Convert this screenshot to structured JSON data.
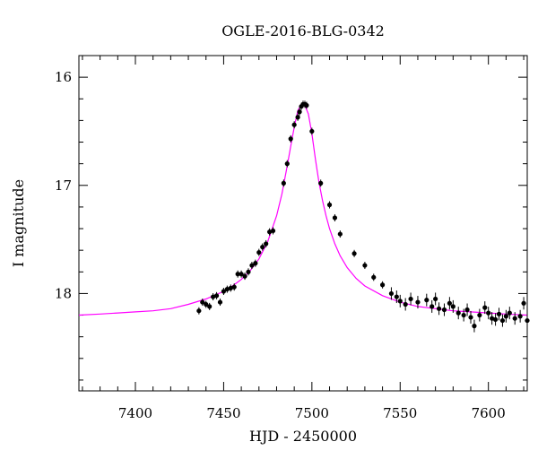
{
  "chart_data": {
    "type": "scatter",
    "title": "OGLE-2016-BLG-0342",
    "xlabel": "HJD - 2450000",
    "ylabel": "I magnitude",
    "xlim": [
      7368,
      7622
    ],
    "ylim": [
      18.9,
      15.8
    ],
    "y_inverted": true,
    "xticks": [
      7400,
      7450,
      7500,
      7550,
      7600
    ],
    "yticks": [
      16,
      17,
      18
    ],
    "grid": false,
    "colors": {
      "points": "#000000",
      "model": "#ff00ff"
    },
    "model": {
      "name": "",
      "x": [
        7368,
        7380,
        7390,
        7400,
        7410,
        7420,
        7430,
        7440,
        7450,
        7455,
        7460,
        7465,
        7470,
        7475,
        7480,
        7483,
        7486,
        7488,
        7490,
        7492,
        7494,
        7496,
        7498,
        7500,
        7502,
        7504,
        7506,
        7508,
        7510,
        7513,
        7516,
        7520,
        7525,
        7530,
        7540,
        7550,
        7560,
        7570,
        7580,
        7590,
        7600,
        7610,
        7622
      ],
      "y": [
        18.2,
        18.19,
        18.18,
        18.17,
        18.16,
        18.14,
        18.1,
        18.05,
        17.98,
        17.93,
        17.87,
        17.79,
        17.68,
        17.52,
        17.28,
        17.08,
        16.82,
        16.64,
        16.46,
        16.31,
        16.25,
        16.26,
        16.34,
        16.52,
        16.76,
        16.97,
        17.14,
        17.28,
        17.4,
        17.54,
        17.65,
        17.76,
        17.86,
        17.93,
        18.02,
        18.08,
        18.12,
        18.14,
        18.16,
        18.17,
        18.18,
        18.19,
        18.2
      ]
    },
    "series": [
      {
        "name": "",
        "x": [
          7436,
          7438,
          7440,
          7442,
          7444,
          7446,
          7448,
          7450,
          7452,
          7454,
          7456,
          7458,
          7460,
          7462,
          7464,
          7466,
          7468,
          7470,
          7472,
          7474,
          7476,
          7478,
          7484,
          7486,
          7488,
          7490,
          7492,
          7493,
          7494,
          7495,
          7496,
          7497,
          7500,
          7505,
          7510,
          7513,
          7516,
          7524,
          7530,
          7535,
          7540,
          7545,
          7548,
          7550,
          7553,
          7556,
          7560,
          7565,
          7568,
          7570,
          7572,
          7575,
          7578,
          7580,
          7583,
          7586,
          7588,
          7590,
          7592,
          7595,
          7598,
          7600,
          7602,
          7604,
          7606,
          7608,
          7610,
          7612,
          7615,
          7618,
          7620,
          7622
        ],
        "y": [
          18.16,
          18.08,
          18.1,
          18.12,
          18.03,
          18.02,
          18.08,
          17.98,
          17.96,
          17.95,
          17.94,
          17.82,
          17.82,
          17.84,
          17.8,
          17.74,
          17.72,
          17.62,
          17.57,
          17.54,
          17.43,
          17.42,
          16.98,
          16.8,
          16.57,
          16.44,
          16.37,
          16.32,
          16.27,
          16.25,
          16.25,
          16.26,
          16.5,
          16.98,
          17.18,
          17.3,
          17.45,
          17.63,
          17.74,
          17.85,
          17.92,
          18.0,
          18.03,
          18.07,
          18.1,
          18.05,
          18.08,
          18.06,
          18.12,
          18.05,
          18.14,
          18.15,
          18.09,
          18.12,
          18.18,
          18.2,
          18.15,
          18.22,
          18.3,
          18.2,
          18.13,
          18.18,
          18.23,
          18.24,
          18.19,
          18.25,
          18.21,
          18.18,
          18.23,
          18.21,
          18.09,
          18.25
        ]
      }
    ]
  }
}
